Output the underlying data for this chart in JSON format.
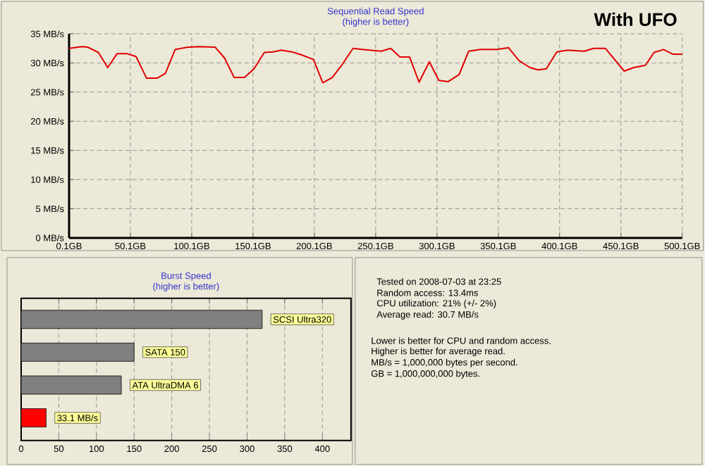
{
  "chart_data": [
    {
      "type": "line",
      "title": "Sequential Read Speed",
      "subtitle": "(higher is better)",
      "color": "#e00000",
      "grid": true,
      "xlim": [
        0.1,
        500.1
      ],
      "ylim": [
        0,
        35
      ],
      "xticks": [
        {
          "value": 0.1,
          "label": "0.1GB"
        },
        {
          "value": 50.1,
          "label": "50.1GB"
        },
        {
          "value": 100.1,
          "label": "100.1GB"
        },
        {
          "value": 150.1,
          "label": "150.1GB"
        },
        {
          "value": 200.1,
          "label": "200.1GB"
        },
        {
          "value": 250.1,
          "label": "250.1GB"
        },
        {
          "value": 300.1,
          "label": "300.1GB"
        },
        {
          "value": 350.1,
          "label": "350.1GB"
        },
        {
          "value": 400.1,
          "label": "400.1GB"
        },
        {
          "value": 450.1,
          "label": "450.1GB"
        },
        {
          "value": 500.1,
          "label": "500.1GB"
        }
      ],
      "yticks": [
        {
          "value": 0,
          "label": "0 MB/s"
        },
        {
          "value": 5,
          "label": "5 MB/s"
        },
        {
          "value": 10,
          "label": "10 MB/s"
        },
        {
          "value": 15,
          "label": "15 MB/s"
        },
        {
          "value": 20,
          "label": "20 MB/s"
        },
        {
          "value": 25,
          "label": "25 MB/s"
        },
        {
          "value": 30,
          "label": "30 MB/s"
        },
        {
          "value": 35,
          "label": "35 MB/s"
        }
      ],
      "x": [
        0.1,
        10.5,
        15.5,
        24,
        31.6,
        39.3,
        47,
        54.7,
        63.2,
        72,
        78.6,
        86.6,
        97,
        106.6,
        119.3,
        127,
        134.7,
        143.2,
        150.9,
        159.3,
        166.3,
        173.2,
        181.6,
        189.3,
        199.3,
        207,
        214.7,
        222.4,
        231.6,
        239.3,
        254.7,
        262.4,
        270,
        277.8,
        285.5,
        293.9,
        301.6,
        309.3,
        318.2,
        325.9,
        335.5,
        348.9,
        358.5,
        367,
        375.9,
        382.4,
        389.3,
        397.8,
        406.7,
        420.1,
        427.8,
        437.4,
        452.8,
        460.5,
        470.1,
        477.1,
        484.8,
        492.5,
        500.1
      ],
      "values": [
        32.5,
        32.8,
        32.7,
        31.8,
        29.2,
        31.6,
        31.6,
        31.1,
        27.4,
        27.4,
        28.2,
        32.3,
        32.7,
        32.8,
        32.7,
        30.8,
        27.5,
        27.5,
        29.0,
        31.8,
        31.9,
        32.2,
        31.9,
        31.4,
        30.6,
        26.6,
        27.5,
        29.6,
        32.5,
        32.3,
        32.0,
        32.5,
        31.0,
        31.0,
        26.7,
        30.2,
        27.0,
        26.8,
        28.0,
        32.0,
        32.3,
        32.3,
        32.6,
        30.4,
        29.2,
        28.8,
        29.0,
        31.9,
        32.2,
        32.0,
        32.5,
        32.5,
        28.6,
        29.2,
        29.6,
        31.8,
        32.3,
        31.5,
        31.5
      ],
      "annotations": [
        "With UFO"
      ]
    },
    {
      "type": "bar",
      "title": "Burst Speed",
      "subtitle": "(higher is better)",
      "orientation": "horizontal",
      "grid": "x",
      "categories": [
        "SCSI Ultra320",
        "SATA 150",
        "ATA UltraDMA 6",
        null
      ],
      "values": [
        320,
        150,
        133,
        33.1
      ],
      "colors": [
        "#808080",
        "#808080",
        "#808080",
        "#ff0000"
      ],
      "value_labels": [
        null,
        null,
        null,
        "33.1 MB/s"
      ],
      "xlim": [
        0,
        438
      ],
      "xticks": [
        0,
        50,
        100,
        150,
        200,
        250,
        300,
        350,
        400
      ]
    },
    {
      "type": "other",
      "annotations": [
        "Tested on 2008-07-03 at 23:25",
        "Random access: 13.4ms",
        "CPU utilization: 21% (+/- 2%)",
        "Average read: 30.7 MB/s",
        "Lower is better for CPU and random access.",
        "Higher is better for average read.",
        "MB/s = 1,000,000 bytes per second.",
        "GB = 1,000,000,000 bytes."
      ]
    }
  ]
}
